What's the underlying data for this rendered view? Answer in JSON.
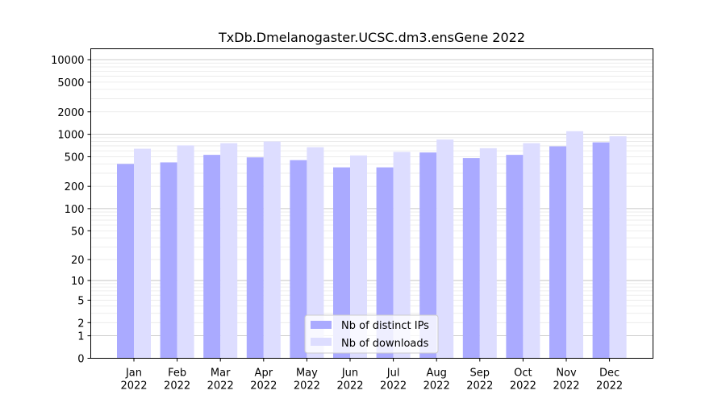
{
  "chart_data": {
    "type": "bar",
    "title": "TxDb.Dmelanogaster.UCSC.dm3.ensGene 2022",
    "xlabel": "",
    "ylabel": "",
    "yscale": "log1p",
    "ylim": [
      0,
      14000
    ],
    "yticks": [
      0,
      1,
      2,
      5,
      10,
      20,
      50,
      100,
      200,
      500,
      1000,
      2000,
      5000,
      10000
    ],
    "ytick_labels": [
      "0",
      "1",
      "2",
      "5",
      "10",
      "20",
      "50",
      "100",
      "200",
      "500",
      "1000",
      "2000",
      "5000",
      "10000"
    ],
    "categories": [
      [
        "Jan",
        "2022"
      ],
      [
        "Feb",
        "2022"
      ],
      [
        "Mar",
        "2022"
      ],
      [
        "Apr",
        "2022"
      ],
      [
        "May",
        "2022"
      ],
      [
        "Jun",
        "2022"
      ],
      [
        "Jul",
        "2022"
      ],
      [
        "Aug",
        "2022"
      ],
      [
        "Sep",
        "2022"
      ],
      [
        "Oct",
        "2022"
      ],
      [
        "Nov",
        "2022"
      ],
      [
        "Dec",
        "2022"
      ]
    ],
    "series": [
      {
        "name": "Nb of distinct IPs",
        "color": "#aaaaff",
        "values": [
          400,
          420,
          530,
          490,
          450,
          360,
          360,
          570,
          480,
          530,
          690,
          780
        ]
      },
      {
        "name": "Nb of downloads",
        "color": "#ddddff",
        "values": [
          640,
          710,
          760,
          800,
          670,
          520,
          580,
          850,
          650,
          760,
          1100,
          940
        ]
      }
    ],
    "grid": true,
    "legend_position": "bottom-center"
  }
}
